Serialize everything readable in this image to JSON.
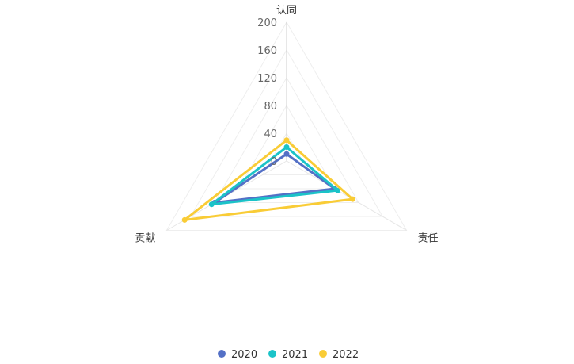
{
  "chart_data": {
    "type": "radar",
    "indicators": [
      {
        "name": "认同",
        "max": 200
      },
      {
        "name": "责任",
        "max": 200
      },
      {
        "name": "贡献",
        "max": 200
      }
    ],
    "ticks": [
      "0",
      "40",
      "80",
      "120",
      "160",
      "200"
    ],
    "series": [
      {
        "name": "2020",
        "values": [
          10,
          80,
          120
        ],
        "color": "#5470c6"
      },
      {
        "name": "2021",
        "values": [
          20,
          85,
          125
        ],
        "color": "#1bc3c8"
      },
      {
        "name": "2022",
        "values": [
          30,
          110,
          170
        ],
        "color": "#f9cc36"
      }
    ],
    "legend_position": "bottom-center"
  }
}
